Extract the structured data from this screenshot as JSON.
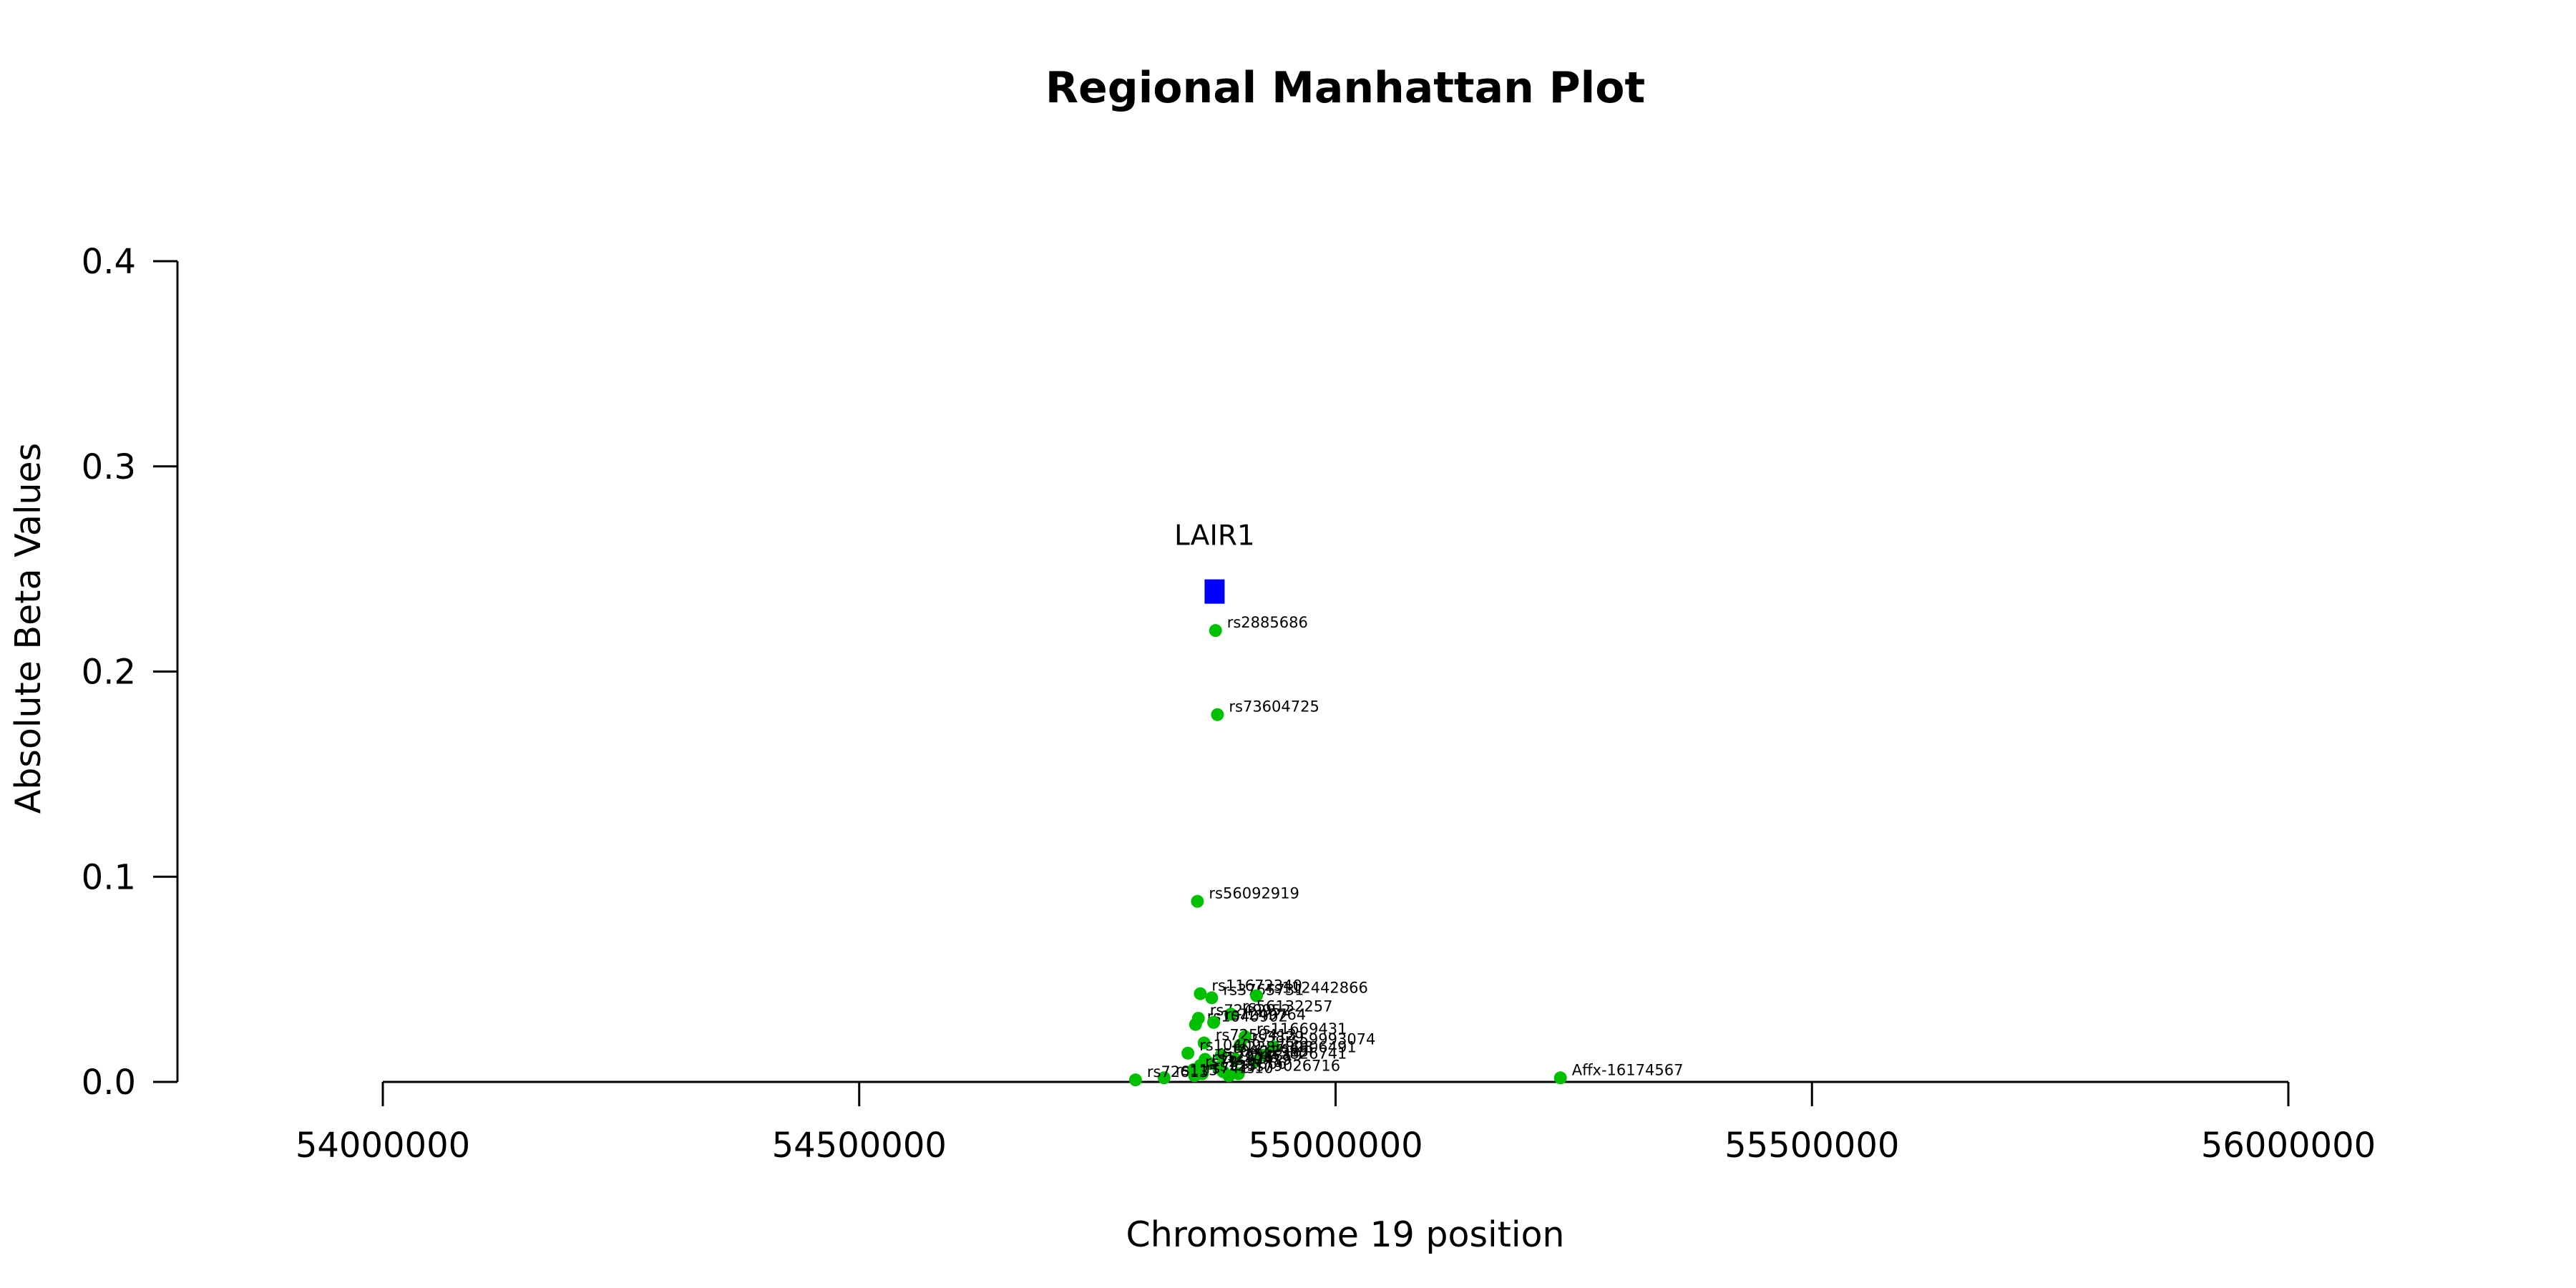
{
  "chart_data": {
    "type": "scatter",
    "title": "Regional Manhattan Plot",
    "xlabel": "Chromosome 19 position",
    "ylabel": "Absolute Beta Values",
    "xlim": [
      53800000,
      56200000
    ],
    "ylim": [
      0,
      0.4
    ],
    "xticks": [
      54000000,
      54500000,
      55000000,
      55500000,
      56000000
    ],
    "yticks": [
      0.0,
      0.1,
      0.2,
      0.3,
      0.4
    ],
    "xtick_labels": [
      "54000000",
      "54500000",
      "55000000",
      "55500000",
      "56000000"
    ],
    "ytick_labels": [
      "0.0",
      "0.1",
      "0.2",
      "0.3",
      "0.4"
    ],
    "grid": false,
    "gene": {
      "name": "LAIR1",
      "x": 54873000,
      "y": 0.239,
      "color": "#0000ff",
      "marker": "square"
    },
    "point_color": "#00c000",
    "points": [
      {
        "x": 54874000,
        "y": 0.22,
        "label": "rs2885686"
      },
      {
        "x": 54876000,
        "y": 0.179,
        "label": "rs73604725"
      },
      {
        "x": 54855000,
        "y": 0.088,
        "label": "rs56092919"
      },
      {
        "x": 54858000,
        "y": 0.043,
        "label": "rs11672340"
      },
      {
        "x": 54870000,
        "y": 0.041,
        "label": "rs3765731"
      },
      {
        "x": 54917000,
        "y": 0.042,
        "label": "rs112442866"
      },
      {
        "x": 54856000,
        "y": 0.031,
        "label": "rs7249952"
      },
      {
        "x": 54890000,
        "y": 0.033,
        "label": "rs56132257"
      },
      {
        "x": 54853000,
        "y": 0.028,
        "label": "rs1040902"
      },
      {
        "x": 54872000,
        "y": 0.029,
        "label": "rs7249764"
      },
      {
        "x": 54905000,
        "y": 0.022,
        "label": "rs11669431"
      },
      {
        "x": 54862000,
        "y": 0.019,
        "label": "rs7250413"
      },
      {
        "x": 54900000,
        "y": 0.018,
        "label": "rs3829"
      },
      {
        "x": 54935000,
        "y": 0.017,
        "label": "rs59993074"
      },
      {
        "x": 54845000,
        "y": 0.014,
        "label": "rs10409"
      },
      {
        "x": 54880000,
        "y": 0.013,
        "label": "rs2287828"
      },
      {
        "x": 54925000,
        "y": 0.013,
        "label": "rs4806491"
      },
      {
        "x": 54863000,
        "y": 0.011,
        "label": "rs10421"
      },
      {
        "x": 54895000,
        "y": 0.011,
        "label": "rs12985"
      },
      {
        "x": 54915000,
        "y": 0.01,
        "label": "rs3826741"
      },
      {
        "x": 54868000,
        "y": 0.009,
        "label": "rs7254819"
      },
      {
        "x": 54858000,
        "y": 0.008,
        "label": "rs12976"
      },
      {
        "x": 54877000,
        "y": 0.007,
        "label": "rs10419"
      },
      {
        "x": 54851000,
        "y": 0.006,
        "label": "rs72"
      },
      {
        "x": 54882000,
        "y": 0.005,
        "label": "rs1866"
      },
      {
        "x": 54898000,
        "y": 0.004,
        "label": "rs79026716"
      },
      {
        "x": 54860000,
        "y": 0.004,
        "label": "rs125"
      },
      {
        "x": 54888000,
        "y": 0.003,
        "label": "rs10"
      },
      {
        "x": 54852000,
        "y": 0.003,
        "label": "rs741"
      },
      {
        "x": 54820000,
        "y": 0.002,
        "label": "rs115"
      },
      {
        "x": 54790000,
        "y": 0.001,
        "label": "rs72613"
      },
      {
        "x": 55236000,
        "y": 0.002,
        "label": "Affx-16174567"
      }
    ]
  }
}
